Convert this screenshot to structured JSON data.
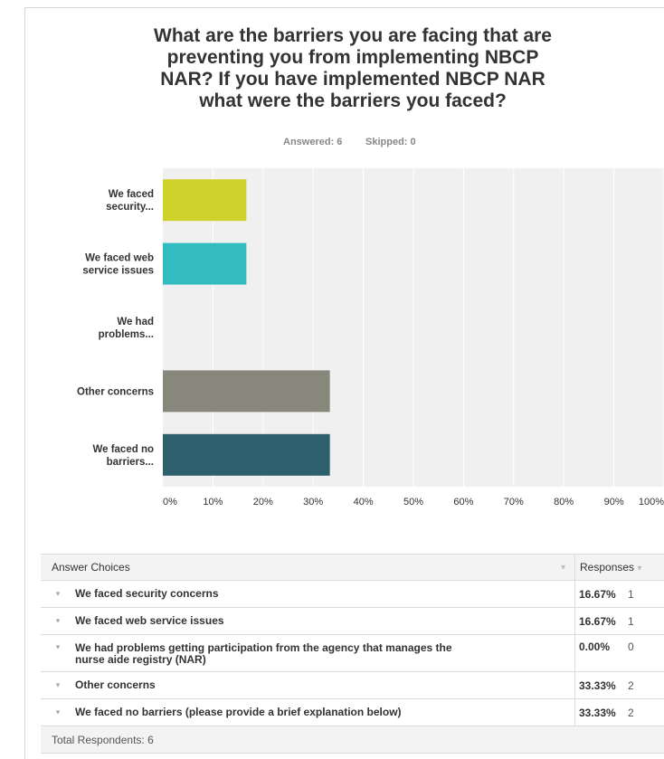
{
  "question": {
    "title_lines": [
      "What are the barriers you are facing that are",
      "preventing you from implementing NBCP",
      "NAR? If you have implemented NBCP NAR",
      "what were the barriers you faced?"
    ],
    "answered": "Answered: 6",
    "skipped": "Skipped: 0"
  },
  "chart_data": {
    "type": "bar",
    "orientation": "horizontal",
    "categories": [
      [
        "We faced",
        "security..."
      ],
      [
        "We faced web",
        "service issues"
      ],
      [
        "We had",
        "problems..."
      ],
      [
        "Other concerns"
      ],
      [
        "We faced no",
        "barriers..."
      ]
    ],
    "values": [
      16.67,
      16.67,
      0,
      33.33,
      33.33
    ],
    "colors": [
      "#cfd22a",
      "#33bcc0",
      "#cccccc",
      "#87877b",
      "#2e5f6c"
    ],
    "xlim": [
      0,
      100
    ],
    "xticks": [
      "0%",
      "10%",
      "20%",
      "30%",
      "40%",
      "50%",
      "60%",
      "70%",
      "80%",
      "90%",
      "100%"
    ],
    "grid": true,
    "plot_background": "#f0f0f0"
  },
  "table": {
    "header_choice": "Answer Choices",
    "header_responses": "Responses",
    "rows": [
      {
        "choice": "We faced security concerns",
        "percent": "16.67%",
        "count": "1"
      },
      {
        "choice": "We faced web service issues",
        "percent": "16.67%",
        "count": "1"
      },
      {
        "choice": "We had problems getting participation from the agency that manages the nurse aide registry (NAR)",
        "percent": "0.00%",
        "count": "0"
      },
      {
        "choice": "Other concerns",
        "percent": "33.33%",
        "count": "2"
      },
      {
        "choice": "We faced no barriers (please provide a brief explanation below)",
        "percent": "33.33%",
        "count": "2"
      }
    ],
    "footer": "Total Respondents: 6",
    "chevron_icon": "chevron-down-icon"
  }
}
